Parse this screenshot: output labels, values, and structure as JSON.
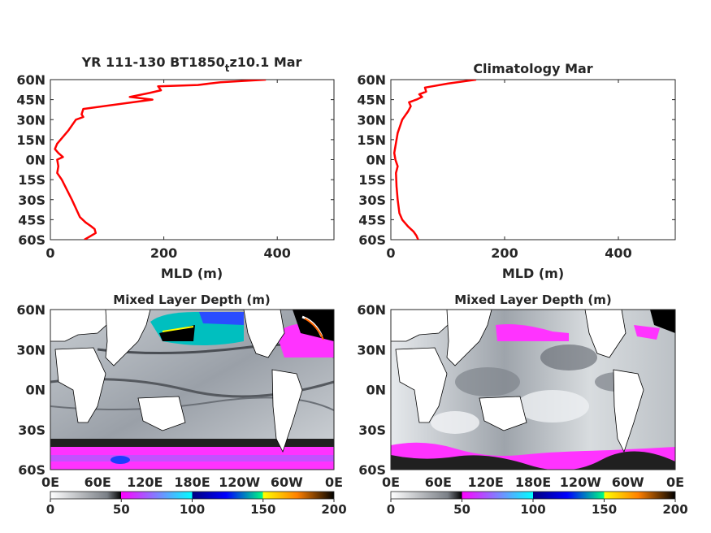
{
  "chart_data": [
    {
      "type": "line",
      "title": "YR 111-130 BT1850",
      "title_subscript": "t",
      "title_suffix": "z10.1 Mar",
      "xlabel": "MLD (m)",
      "xlim": [
        0,
        500
      ],
      "xticks": [
        "0",
        "200",
        "400"
      ],
      "ylim": [
        -60,
        60
      ],
      "yticks": [
        "60N",
        "45N",
        "30N",
        "15N",
        "0N",
        "15S",
        "30S",
        "45S",
        "60S"
      ],
      "line_color": "#ff0000",
      "series": [
        {
          "x": [
            60,
            80,
            78,
            72,
            62,
            52,
            38,
            20,
            12,
            14,
            12,
            22,
            14,
            8,
            12,
            22,
            32,
            45,
            58,
            55,
            58,
            145,
            180,
            140,
            175,
            195,
            190,
            260,
            280,
            300,
            380
          ],
          "y": [
            -60,
            -55,
            -52,
            -50,
            -47,
            -43,
            -30,
            -15,
            -10,
            -5,
            0,
            2,
            5,
            8,
            12,
            17,
            22,
            30,
            32,
            34,
            38,
            43,
            45,
            47,
            50,
            52,
            55,
            56,
            57,
            58,
            60
          ]
        }
      ]
    },
    {
      "type": "line",
      "title": "Climatology Mar",
      "xlabel": "MLD (m)",
      "xlim": [
        0,
        500
      ],
      "xticks": [
        "0",
        "200",
        "400"
      ],
      "ylim": [
        -60,
        60
      ],
      "yticks": [
        "60N",
        "45N",
        "30N",
        "15N",
        "0N",
        "15S",
        "30S",
        "45S",
        "60S"
      ],
      "line_color": "#ff0000",
      "series": [
        {
          "x": [
            48,
            45,
            40,
            30,
            20,
            15,
            12,
            10,
            9,
            12,
            8,
            6,
            8,
            10,
            12,
            16,
            20,
            25,
            30,
            35,
            32,
            45,
            55,
            50,
            62,
            60,
            100,
            150
          ],
          "y": [
            -60,
            -57,
            -54,
            -50,
            -45,
            -40,
            -30,
            -20,
            -10,
            -5,
            0,
            5,
            10,
            15,
            20,
            25,
            30,
            33,
            36,
            40,
            43,
            45,
            47,
            49,
            51,
            54,
            57,
            60
          ]
        }
      ]
    },
    {
      "type": "heatmap",
      "title": "Mixed Layer Depth (m)",
      "xticks": [
        "0E",
        "60E",
        "120E",
        "180E",
        "120W",
        "60W",
        "0E"
      ],
      "yticks": [
        "60N",
        "30N",
        "0N",
        "30S",
        "60S"
      ],
      "colorbar_ticks": [
        "0",
        "50",
        "100",
        "150",
        "200"
      ],
      "clim": [
        0,
        200
      ]
    },
    {
      "type": "heatmap",
      "title": "Mixed Layer Depth (m)",
      "xticks": [
        "0E",
        "60E",
        "120E",
        "180E",
        "120W",
        "60W",
        "0E"
      ],
      "yticks": [
        "60N",
        "30N",
        "0N",
        "30S",
        "60S"
      ],
      "colorbar_ticks": [
        "0",
        "50",
        "100",
        "150",
        "200"
      ],
      "clim": [
        0,
        200
      ]
    }
  ]
}
